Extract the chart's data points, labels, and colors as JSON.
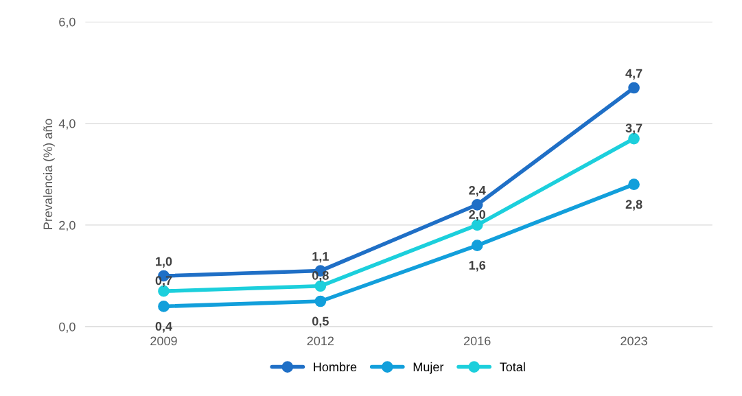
{
  "chart_data": {
    "type": "line",
    "ylabel": "Prevalencia (%) año",
    "categories": [
      "2009",
      "2012",
      "2016",
      "2023"
    ],
    "series": [
      {
        "name": "Hombre",
        "color": "#1f6fc6",
        "values": [
          1.0,
          1.1,
          2.4,
          4.7
        ],
        "value_labels": [
          "1,0",
          "1,1",
          "2,4",
          "4,7"
        ]
      },
      {
        "name": "Mujer",
        "color": "#129fdb",
        "values": [
          0.4,
          0.5,
          1.6,
          2.8
        ],
        "value_labels": [
          "0,4",
          "0,5",
          "1,6",
          "2,8"
        ]
      },
      {
        "name": "Total",
        "color": "#1ccfdc",
        "values": [
          0.7,
          0.8,
          2.0,
          3.7
        ],
        "value_labels": [
          "0,7",
          "0,8",
          "2,0",
          "3,7"
        ]
      }
    ],
    "ylim": [
      0,
      6
    ],
    "yticks": [
      {
        "value": 0,
        "label": "0,0"
      },
      {
        "value": 2,
        "label": "2,0"
      },
      {
        "value": 4,
        "label": "4,0"
      },
      {
        "value": 6,
        "label": "6,0"
      }
    ],
    "grid": "y",
    "legend": "bottom",
    "marker": "circle",
    "line_style": "solid"
  }
}
